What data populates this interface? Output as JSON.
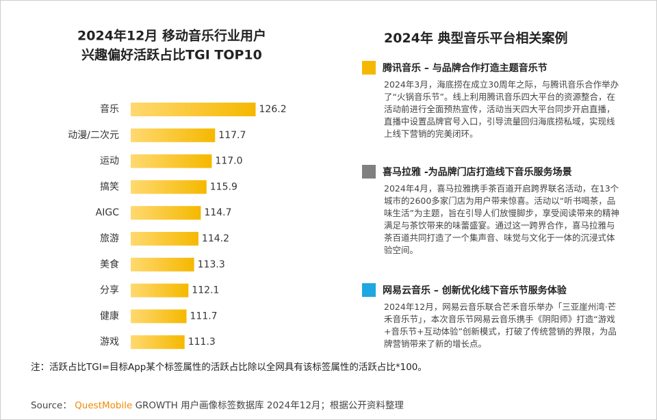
{
  "chart_data": {
    "type": "hbar",
    "title": [
      "2024年12月 移动音乐行业用户",
      "兴趣偏好活跃占比TGI TOP10"
    ],
    "categories": [
      "音乐",
      "动漫/二次元",
      "运动",
      "搞笑",
      "AIGC",
      "旅游",
      "美食",
      "分享",
      "健康",
      "游戏"
    ],
    "values": [
      126.2,
      117.7,
      117.0,
      115.9,
      114.7,
      114.2,
      113.3,
      112.1,
      111.7,
      111.3
    ],
    "value_labels": [
      "126.2",
      "117.7",
      "117.0",
      "115.9",
      "114.7",
      "114.2",
      "113.3",
      "112.1",
      "111.7",
      "111.3"
    ],
    "color": "#f5b800",
    "xlim": [
      100,
      130
    ]
  },
  "cases": {
    "title": "2024年 典型音乐平台相关案例",
    "items": [
      {
        "color": "#f5b800",
        "heading": "腾讯音乐 – 与品牌合作打造主题音乐节",
        "text": "2024年3月，海底捞在成立30周年之际，与腾讯音乐合作举办了“火锅音乐节”。线上利用腾讯音乐四大平台的资源整合，在活动前进行全面预热宣传，活动当天四大平台同步开启直播，直播中设置品牌官号入口，引导流量回归海底捞私域，实现线上线下营销的完美闭环。"
      },
      {
        "color": "#808080",
        "heading": "喜马拉雅 -为品牌门店打造线下音乐服务场景",
        "text": "2024年4月，喜马拉雅携手茶百道开启跨界联名活动，在13个城市的2600多家门店为用户带来惊喜。活动以“听书喝茶，品味生活”为主题，旨在引导人们放慢脚步，享受阅读带来的精神满足与茶饮带来的味蕾盛宴。通过这一跨界合作，喜马拉雅与茶百道共同打造了一个集声音、味觉与文化于一体的沉浸式体验空间。"
      },
      {
        "color": "#1ea7e1",
        "heading": "网易云音乐 – 创新优化线下音乐节服务体验",
        "text": "2024年12月，网易云音乐联合芒禾音乐举办「三亚崖州湾·芒禾音乐节」，本次音乐节网易云音乐携手《阴阳师》打造“游戏+音乐节+互动体验”创新模式，打破了传统营销的界限，为品牌营销带来了新的增长点。"
      }
    ]
  },
  "note": "注：活跃占比TGI=目标App某个标签属性的活跃占比除以全网具有该标签属性的活跃占比*100。",
  "source": {
    "label": "Source：",
    "brand": "QuestMobile",
    "text": "GROWTH 用户画像标签数据库 2024年12月；根据公开资料整理"
  }
}
